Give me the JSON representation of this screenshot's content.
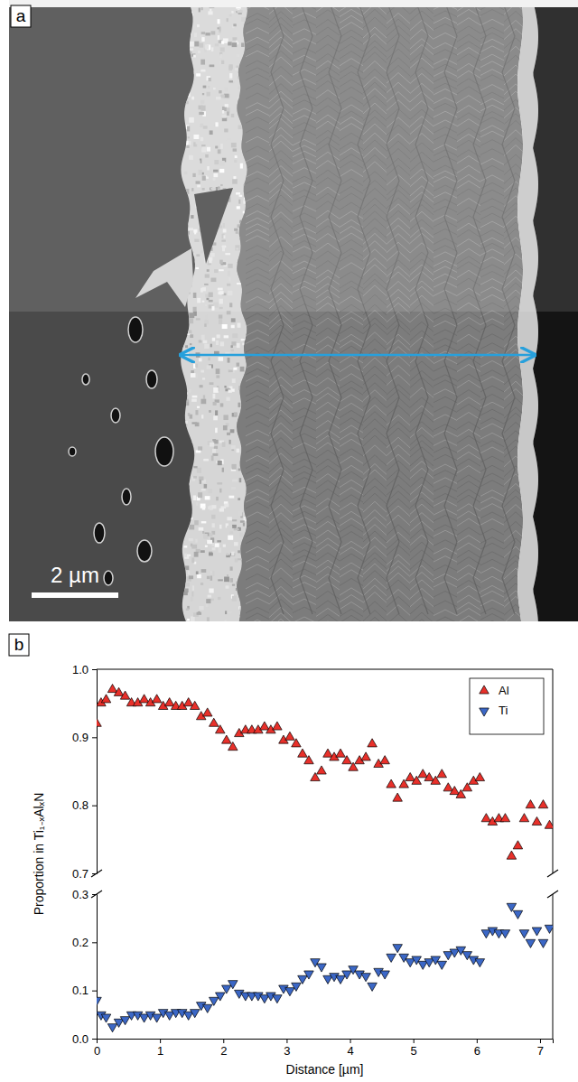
{
  "panel_a": {
    "label": "a",
    "scale_bar": "2 µm"
  },
  "panel_b": {
    "label": "b"
  },
  "chart_data": {
    "type": "scatter",
    "x_label": "Distance [µm]",
    "y_label": "Proportion in Ti₁₋ₓAlₓN",
    "xlim": [
      0,
      7.2
    ],
    "xticks": [
      0,
      1,
      2,
      3,
      4,
      5,
      6,
      7
    ],
    "ylim": [
      0,
      1.0
    ],
    "yticks": [
      {
        "value": 0,
        "label": "0.0"
      },
      0.1,
      0.2,
      0.3,
      0.7,
      0.8,
      0.9,
      {
        "value": 1.0,
        "label": "1.0"
      }
    ],
    "legend": "upper right",
    "x": [
      0,
      0.07,
      0.15,
      0.25,
      0.35,
      0.45,
      0.55,
      0.65,
      0.75,
      0.85,
      0.95,
      1.05,
      1.15,
      1.25,
      1.35,
      1.45,
      1.55,
      1.65,
      1.75,
      1.85,
      1.95,
      2.05,
      2.15,
      2.25,
      2.35,
      2.45,
      2.55,
      2.65,
      2.75,
      2.85,
      2.95,
      3.05,
      3.15,
      3.25,
      3.35,
      3.45,
      3.55,
      3.65,
      3.75,
      3.85,
      3.95,
      4.05,
      4.15,
      4.25,
      4.35,
      4.45,
      4.55,
      4.65,
      4.75,
      4.85,
      4.95,
      5.05,
      5.15,
      5.25,
      5.35,
      5.45,
      5.55,
      5.65,
      5.75,
      5.85,
      5.95,
      6.05,
      6.15,
      6.25,
      6.35,
      6.45,
      6.55,
      6.65,
      6.75,
      6.85,
      6.95,
      7.05,
      7.15
    ],
    "series": [
      {
        "name": "Al",
        "color": "#e8302a",
        "marker": "triangle-up",
        "values": [
          0.92,
          0.95,
          0.955,
          0.97,
          0.965,
          0.96,
          0.95,
          0.95,
          0.955,
          0.95,
          0.955,
          0.945,
          0.95,
          0.945,
          0.945,
          0.95,
          0.945,
          0.93,
          0.935,
          0.92,
          0.91,
          0.895,
          0.885,
          0.905,
          0.91,
          0.91,
          0.91,
          0.915,
          0.91,
          0.915,
          0.895,
          0.9,
          0.89,
          0.875,
          0.865,
          0.84,
          0.85,
          0.875,
          0.87,
          0.875,
          0.865,
          0.855,
          0.865,
          0.87,
          0.89,
          0.86,
          0.865,
          0.83,
          0.81,
          0.83,
          0.84,
          0.835,
          0.845,
          0.84,
          0.835,
          0.845,
          0.825,
          0.82,
          0.815,
          0.825,
          0.835,
          0.84,
          0.78,
          0.775,
          0.78,
          0.78,
          0.725,
          0.74,
          0.78,
          0.8,
          0.775,
          0.8,
          0.77
        ]
      },
      {
        "name": "Ti",
        "color": "#3b67c6",
        "marker": "triangle-down",
        "values": [
          0.08,
          0.05,
          0.045,
          0.025,
          0.035,
          0.04,
          0.05,
          0.05,
          0.045,
          0.05,
          0.045,
          0.055,
          0.05,
          0.055,
          0.055,
          0.05,
          0.055,
          0.07,
          0.065,
          0.08,
          0.09,
          0.105,
          0.115,
          0.095,
          0.09,
          0.09,
          0.09,
          0.085,
          0.09,
          0.085,
          0.105,
          0.1,
          0.11,
          0.125,
          0.135,
          0.16,
          0.15,
          0.125,
          0.13,
          0.125,
          0.135,
          0.145,
          0.135,
          0.13,
          0.11,
          0.14,
          0.135,
          0.17,
          0.19,
          0.17,
          0.16,
          0.165,
          0.155,
          0.16,
          0.165,
          0.155,
          0.175,
          0.18,
          0.185,
          0.175,
          0.165,
          0.16,
          0.22,
          0.225,
          0.22,
          0.22,
          0.275,
          0.26,
          0.22,
          0.2,
          0.225,
          0.2,
          0.23
        ]
      }
    ]
  }
}
